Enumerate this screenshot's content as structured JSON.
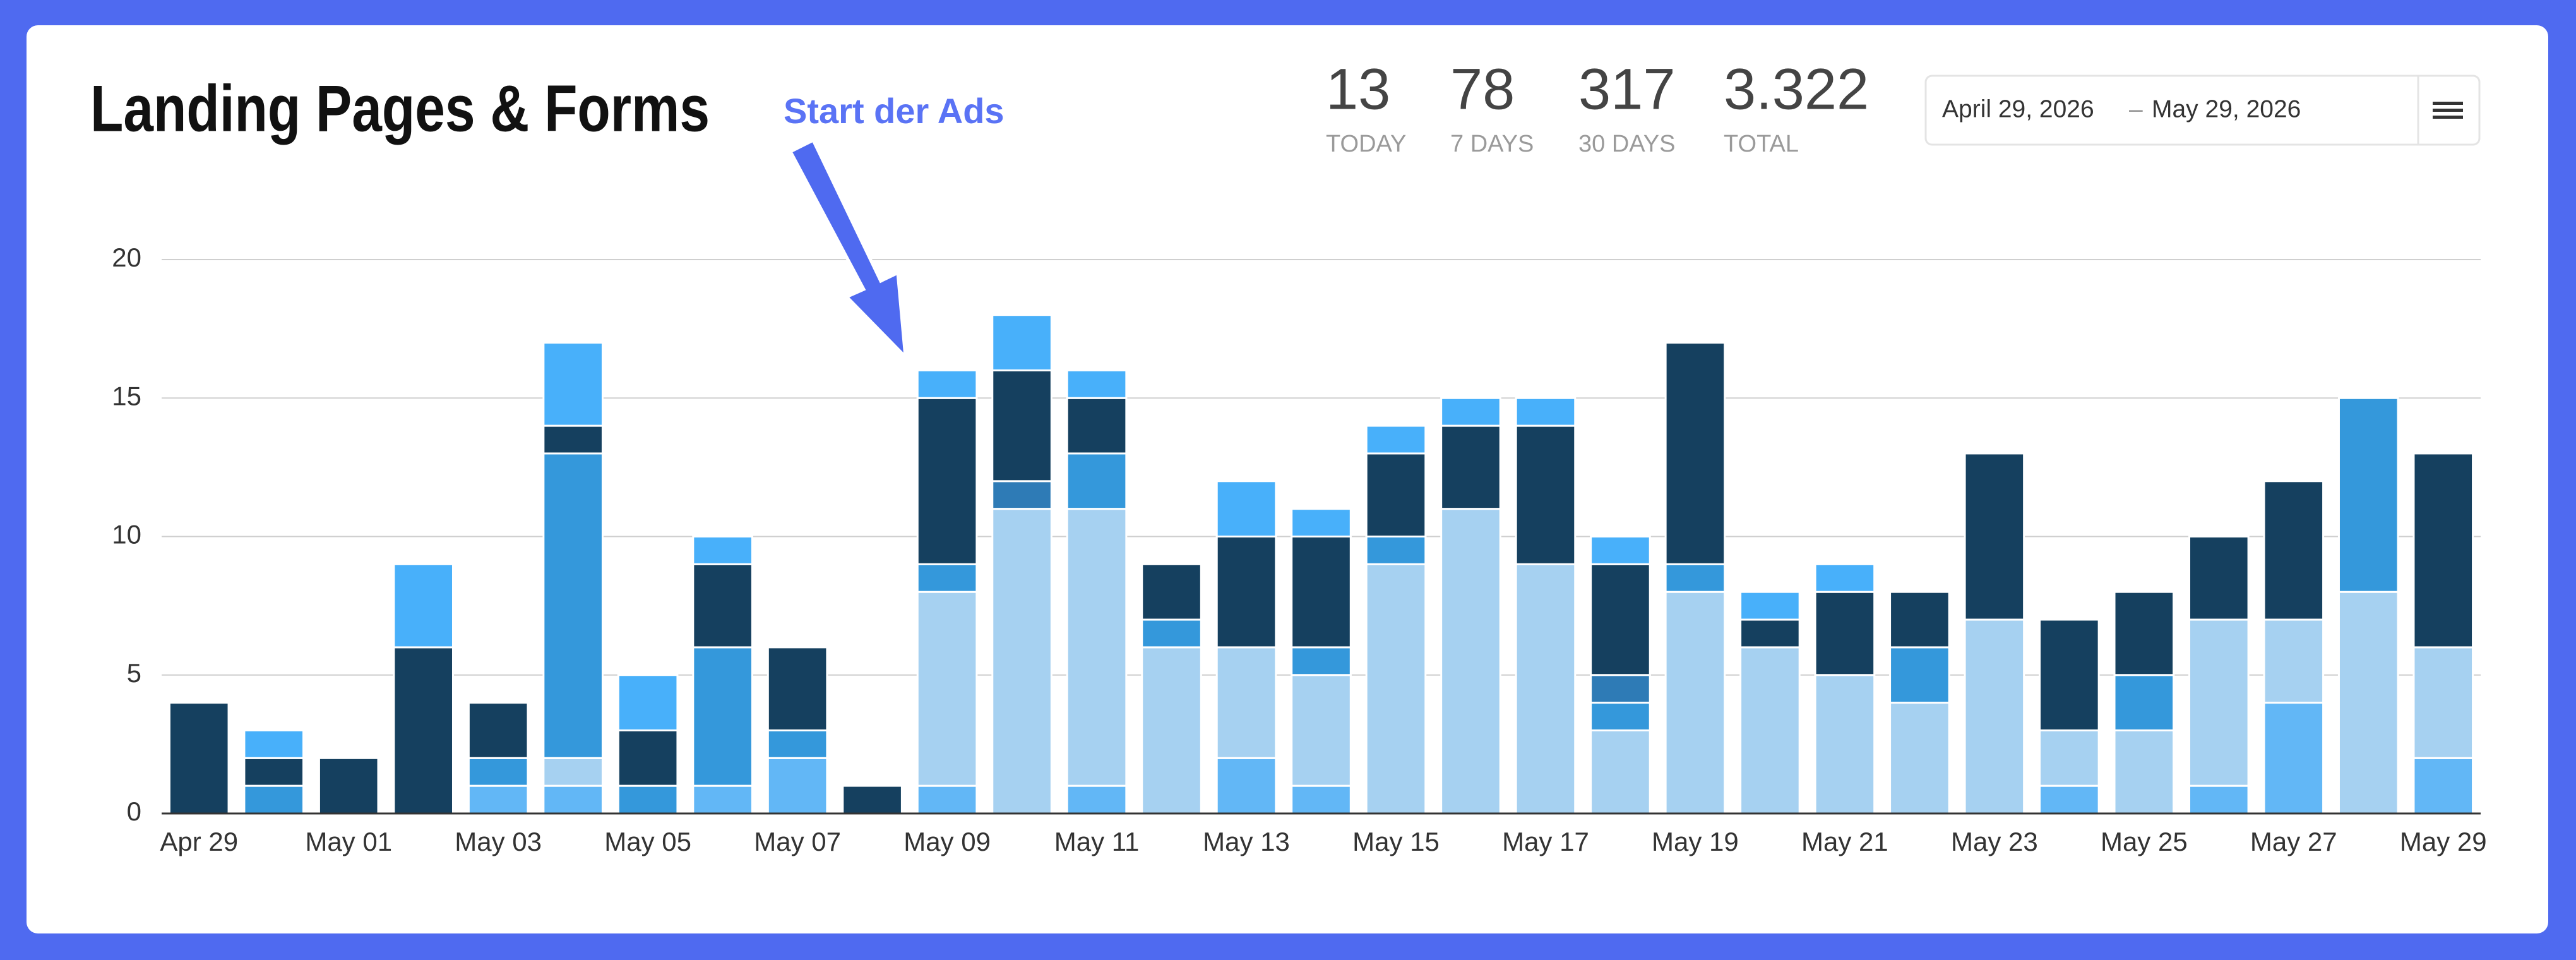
{
  "header": {
    "stats": [
      {
        "value": "13",
        "label": "TODAY"
      },
      {
        "value": "78",
        "label": "7 DAYS"
      },
      {
        "value": "317",
        "label": "30 DAYS"
      },
      {
        "value": "3.322",
        "label": "TOTAL"
      }
    ],
    "date_range": {
      "start": "April 29, 2026",
      "separator": "–",
      "end": "May 29, 2026"
    }
  },
  "chart_data": {
    "type": "stacked_bar",
    "title": "Landing Pages & Forms",
    "annotation": "Start der Ads",
    "categories": [
      "Apr 29",
      null,
      "May 01",
      null,
      "May 03",
      null,
      "May 05",
      null,
      "May 07",
      null,
      "May 09",
      null,
      "May 11",
      null,
      "May 13",
      null,
      "May 15",
      null,
      "May 17",
      null,
      "May 19",
      null,
      "May 21",
      null,
      "May 23",
      null,
      "May 25",
      null,
      "May 27",
      null,
      "May 29"
    ],
    "series": [
      {
        "color": "#62b7f6",
        "values": [
          0,
          0,
          0,
          0,
          1,
          1,
          0,
          1,
          2,
          0,
          1,
          0,
          1,
          0,
          2,
          1,
          0,
          0,
          0,
          0,
          0,
          0,
          0,
          0,
          0,
          1,
          0,
          1,
          4,
          0,
          2
        ]
      },
      {
        "color": "#a6d1f1",
        "values": [
          0,
          0,
          0,
          0,
          0,
          1,
          0,
          0,
          0,
          0,
          7,
          11,
          10,
          6,
          4,
          4,
          9,
          11,
          9,
          3,
          8,
          6,
          5,
          4,
          7,
          2,
          3,
          6,
          3,
          8,
          4
        ]
      },
      {
        "color": "#3498db",
        "values": [
          0,
          1,
          0,
          0,
          1,
          11,
          1,
          5,
          1,
          0,
          1,
          0,
          2,
          1,
          0,
          1,
          1,
          0,
          0,
          1,
          1,
          0,
          0,
          2,
          0,
          0,
          2,
          0,
          0,
          7,
          0
        ]
      },
      {
        "color": "#2e7bb6",
        "values": [
          0,
          0,
          0,
          0,
          0,
          0,
          0,
          0,
          0,
          0,
          0,
          1,
          0,
          0,
          0,
          0,
          0,
          0,
          0,
          1,
          0,
          0,
          0,
          0,
          0,
          0,
          0,
          0,
          0,
          0,
          0
        ]
      },
      {
        "color": "#15405f",
        "values": [
          4,
          1,
          2,
          6,
          2,
          1,
          2,
          3,
          3,
          1,
          6,
          4,
          2,
          2,
          4,
          4,
          3,
          3,
          5,
          4,
          8,
          1,
          3,
          2,
          6,
          4,
          3,
          3,
          5,
          0,
          7
        ]
      },
      {
        "color": "#48b0fa",
        "values": [
          0,
          1,
          0,
          3,
          0,
          3,
          2,
          1,
          0,
          0,
          1,
          2,
          1,
          0,
          2,
          1,
          1,
          1,
          1,
          1,
          0,
          1,
          1,
          0,
          0,
          0,
          0,
          0,
          0,
          0,
          0
        ]
      }
    ],
    "ylim": [
      0,
      20
    ],
    "yticks": [
      0,
      5,
      10,
      15,
      20
    ],
    "grid": true
  }
}
